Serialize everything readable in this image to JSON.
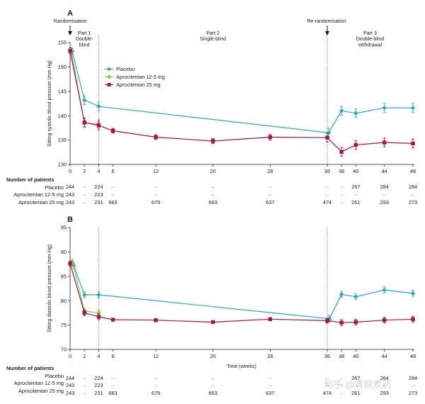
{
  "colors": {
    "placebo": "#2aa6bf",
    "apro12": "#8cc63f",
    "apro25": "#a3144d",
    "axis": "#222222",
    "phase_line": "#555555"
  },
  "watermark": "知乎 @青铜煮药",
  "chart_data": [
    {
      "type": "line",
      "panel": "A",
      "ylabel": "Sitting systolic blood pressure (mm Hg)",
      "xlabel": "",
      "xlim": [
        0,
        48
      ],
      "ylim": [
        130,
        155
      ],
      "xticks": [
        0,
        2,
        4,
        6,
        12,
        20,
        28,
        36,
        38,
        40,
        44,
        48
      ],
      "yticks": [
        130,
        135,
        140,
        145,
        150,
        155
      ],
      "phase_lines": [
        4,
        36
      ],
      "phases": [
        {
          "label_lines": [
            "Part 1",
            "Double-",
            "blind"
          ],
          "x": 2
        },
        {
          "label_lines": [
            "Part 2",
            "Single-blind"
          ],
          "x": 20
        },
        {
          "label_lines": [
            "Part 3",
            "Double-blind",
            "withdrawal"
          ],
          "x": 42
        }
      ],
      "events": [
        {
          "label": "Randomisation",
          "x": 0
        },
        {
          "label": "Re-randomisation",
          "x": 36
        }
      ],
      "legend": [
        "Placebo",
        "Aprocitentan 12·5 mg",
        "Aprocitentan 25 mg"
      ],
      "series": [
        {
          "name": "Placebo",
          "marker": "diamond",
          "x": [
            0.3,
            2,
            4,
            36.2,
            38,
            40,
            44,
            48
          ],
          "y": [
            153.2,
            143.2,
            141.9,
            136.5,
            141.0,
            140.5,
            141.6,
            141.6
          ],
          "err": [
            0.6,
            0.9,
            0.9,
            0.9,
            0.9,
            0.9,
            0.9,
            0.9
          ]
        },
        {
          "name": "Aprocitentan 12·5 mg",
          "marker": "circle",
          "x": [
            0.15,
            2,
            4
          ],
          "y": [
            153.4,
            138.5,
            138.3
          ],
          "err": [
            0.6,
            0.9,
            0.9
          ]
        },
        {
          "name": "Aprocitentan 25 mg",
          "marker": "square",
          "x": [
            0,
            2,
            4,
            6,
            12,
            20,
            28,
            36,
            38,
            40,
            44,
            48
          ],
          "y": [
            153.3,
            138.6,
            138.0,
            136.9,
            135.6,
            134.8,
            135.6,
            135.5,
            132.6,
            134.0,
            134.5,
            134.3
          ],
          "err": [
            0.6,
            0.9,
            0.9,
            0.5,
            0.5,
            0.5,
            0.6,
            0.9,
            0.9,
            0.9,
            0.9,
            0.9
          ]
        }
      ]
    },
    {
      "type": "line",
      "panel": "B",
      "ylabel": "Sitting diastolic blood pressure (mm Hg)",
      "xlabel": "Time (weeks)",
      "xlim": [
        0,
        48
      ],
      "ylim": [
        70,
        95
      ],
      "xticks": [
        0,
        2,
        4,
        6,
        12,
        20,
        28,
        36,
        38,
        40,
        44,
        48
      ],
      "yticks": [
        70,
        75,
        80,
        85,
        90,
        95
      ],
      "phase_lines": [
        4,
        36
      ],
      "series": [
        {
          "name": "Placebo",
          "marker": "diamond",
          "x": [
            0.5,
            2,
            4,
            36.3,
            38,
            40,
            44,
            48
          ],
          "y": [
            87.2,
            81.2,
            81.2,
            76.3,
            81.3,
            80.8,
            82.2,
            81.5
          ],
          "err": [
            0.5,
            0.6,
            0.6,
            0.6,
            0.6,
            0.6,
            0.6,
            0.6
          ]
        },
        {
          "name": "Aprocitentan 12·5 mg",
          "marker": "circle",
          "x": [
            0.3,
            2,
            4
          ],
          "y": [
            88.0,
            77.9,
            77.5
          ],
          "err": [
            0.5,
            0.6,
            0.6
          ]
        },
        {
          "name": "Aprocitentan 25 mg",
          "marker": "square",
          "x": [
            0,
            2,
            4,
            6,
            12,
            20,
            28,
            36,
            38,
            40,
            44,
            48
          ],
          "y": [
            87.6,
            77.5,
            76.7,
            76.1,
            76.0,
            75.6,
            76.2,
            75.9,
            75.5,
            75.6,
            76.0,
            76.2
          ],
          "err": [
            0.5,
            0.6,
            0.6,
            0.3,
            0.3,
            0.3,
            0.3,
            0.5,
            0.6,
            0.6,
            0.6,
            0.6
          ]
        }
      ]
    }
  ],
  "patients_tables": [
    {
      "header": "Number of patients",
      "rows": [
        {
          "label": "Placebo",
          "cells": [
            "244",
            "··",
            "224",
            "··",
            "··",
            "··",
            "··",
            "··",
            "··",
            "267",
            "284",
            "284"
          ]
        },
        {
          "label": "Aprocitentan 12·5 mg",
          "cells": [
            "243",
            "··",
            "223",
            "··",
            "··",
            "··",
            "··",
            "··",
            "··",
            "··",
            "··",
            "··"
          ]
        },
        {
          "label": "Aprocitentan 25 mg",
          "cells": [
            "243",
            "··",
            "231",
            "663",
            "679",
            "663",
            "637",
            "474",
            "··",
            "261",
            "293",
            "273"
          ]
        }
      ]
    },
    {
      "header": "Number of patients",
      "rows": [
        {
          "label": "Placebo",
          "cells": [
            "244",
            "··",
            "224",
            "··",
            "··",
            "··",
            "··",
            "··",
            "··",
            "267",
            "284",
            "284"
          ]
        },
        {
          "label": "Aprocitentan 12·5 mg",
          "cells": [
            "243",
            "··",
            "223",
            "··",
            "··",
            "··",
            "··",
            "··",
            "··",
            "··",
            "··",
            "··"
          ]
        },
        {
          "label": "Aprocitentan 25 mg",
          "cells": [
            "243",
            "··",
            "231",
            "663",
            "679",
            "663",
            "637",
            "474",
            "··",
            "261",
            "293",
            "273"
          ]
        }
      ]
    }
  ]
}
